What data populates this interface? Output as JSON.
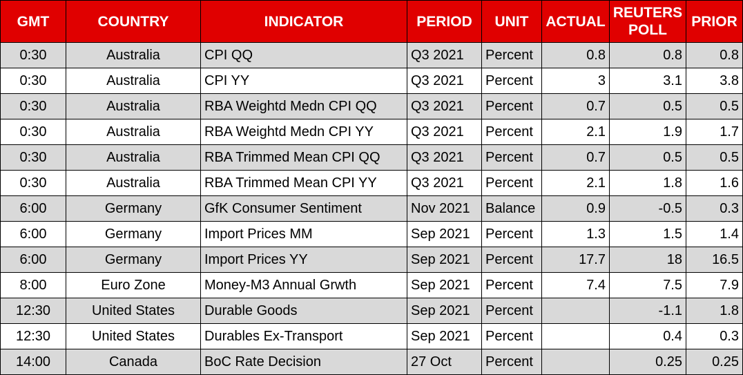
{
  "colors": {
    "header_bg": "#e00000",
    "header_text": "#ffffff",
    "shaded_row": "#d9d9d9"
  },
  "headers": {
    "gmt": "GMT",
    "country": "COUNTRY",
    "indicator": "INDICATOR",
    "period": "PERIOD",
    "unit": "UNIT",
    "actual": "ACTUAL",
    "poll_line1": "REUTERS",
    "poll_line2": "POLL",
    "prior": "PRIOR"
  },
  "rows": [
    {
      "gmt": "0:30",
      "country": "Australia",
      "indicator": "CPI QQ",
      "period": "Q3 2021",
      "unit": "Percent",
      "actual": "0.8",
      "poll": "0.8",
      "prior": "0.8"
    },
    {
      "gmt": "0:30",
      "country": "Australia",
      "indicator": "CPI YY",
      "period": "Q3 2021",
      "unit": "Percent",
      "actual": "3",
      "poll": "3.1",
      "prior": "3.8"
    },
    {
      "gmt": "0:30",
      "country": "Australia",
      "indicator": "RBA Weightd Medn CPI QQ",
      "period": "Q3 2021",
      "unit": "Percent",
      "actual": "0.7",
      "poll": "0.5",
      "prior": "0.5"
    },
    {
      "gmt": "0:30",
      "country": "Australia",
      "indicator": "RBA Weightd Medn CPI YY",
      "period": "Q3 2021",
      "unit": "Percent",
      "actual": "2.1",
      "poll": "1.9",
      "prior": "1.7"
    },
    {
      "gmt": "0:30",
      "country": "Australia",
      "indicator": "RBA Trimmed Mean CPI QQ",
      "period": "Q3 2021",
      "unit": "Percent",
      "actual": "0.7",
      "poll": "0.5",
      "prior": "0.5"
    },
    {
      "gmt": "0:30",
      "country": "Australia",
      "indicator": "RBA Trimmed Mean CPI YY",
      "period": "Q3 2021",
      "unit": "Percent",
      "actual": "2.1",
      "poll": "1.8",
      "prior": "1.6"
    },
    {
      "gmt": "6:00",
      "country": "Germany",
      "indicator": "GfK Consumer Sentiment",
      "period": "Nov 2021",
      "unit": "Balance",
      "actual": "0.9",
      "poll": "-0.5",
      "prior": "0.3"
    },
    {
      "gmt": "6:00",
      "country": "Germany",
      "indicator": "Import Prices MM",
      "period": "Sep 2021",
      "unit": "Percent",
      "actual": "1.3",
      "poll": "1.5",
      "prior": "1.4"
    },
    {
      "gmt": "6:00",
      "country": "Germany",
      "indicator": "Import Prices YY",
      "period": "Sep 2021",
      "unit": "Percent",
      "actual": "17.7",
      "poll": "18",
      "prior": "16.5"
    },
    {
      "gmt": "8:00",
      "country": "Euro Zone",
      "indicator": "Money-M3 Annual Grwth",
      "period": "Sep 2021",
      "unit": "Percent",
      "actual": "7.4",
      "poll": "7.5",
      "prior": "7.9"
    },
    {
      "gmt": "12:30",
      "country": "United States",
      "indicator": "Durable Goods",
      "period": "Sep 2021",
      "unit": "Percent",
      "actual": "",
      "poll": "-1.1",
      "prior": "1.8"
    },
    {
      "gmt": "12:30",
      "country": "United States",
      "indicator": "Durables Ex-Transport",
      "period": "Sep 2021",
      "unit": "Percent",
      "actual": "",
      "poll": "0.4",
      "prior": "0.3"
    },
    {
      "gmt": "14:00",
      "country": "Canada",
      "indicator": "BoC Rate Decision",
      "period": "27 Oct",
      "unit": "Percent",
      "actual": "",
      "poll": "0.25",
      "prior": "0.25"
    }
  ]
}
